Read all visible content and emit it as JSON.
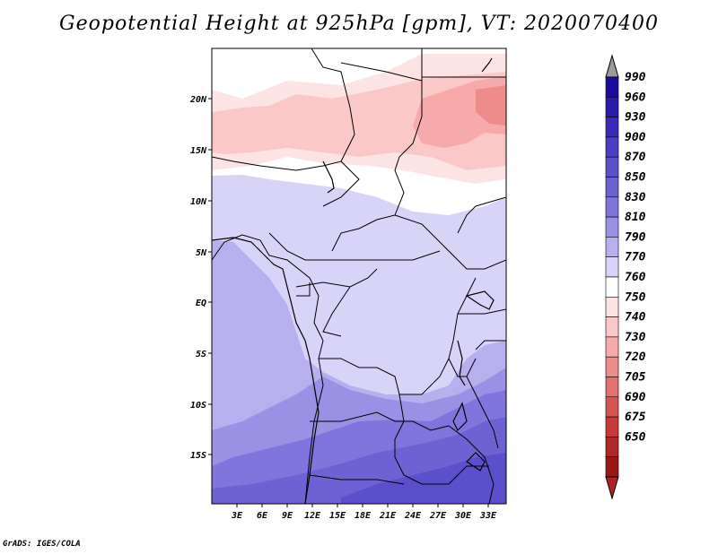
{
  "title": "Geopotential Height at 925hPa [gpm], VT: 2020070400",
  "credit": "GrADS: IGES/COLA",
  "map": {
    "lon_ticks": [
      "3E",
      "6E",
      "9E",
      "12E",
      "15E",
      "18E",
      "21E",
      "24E",
      "27E",
      "30E",
      "33E"
    ],
    "lat_ticks": [
      "20N",
      "15N",
      "10N",
      "5N",
      "EQ",
      "5S",
      "10S",
      "15S"
    ]
  },
  "colorbar": {
    "levels": [
      "990",
      "960",
      "930",
      "900",
      "870",
      "850",
      "830",
      "810",
      "790",
      "770",
      "760",
      "750",
      "740",
      "730",
      "720",
      "705",
      "690",
      "675",
      "650"
    ],
    "colors": [
      "#1c0a9a",
      "#2a1aaa",
      "#3a2cb8",
      "#4a3ec4",
      "#5a50cc",
      "#6c62d4",
      "#8075dc",
      "#9a90e4",
      "#b8b0ee",
      "#d8d4f8",
      "#ffffff",
      "#fde4e4",
      "#fbc8c8",
      "#f6aaaa",
      "#ee8c8c",
      "#e47070",
      "#d85454",
      "#c83a3a",
      "#b02828",
      "#981818"
    ],
    "arrow_top_color": "#9a9a9a",
    "arrow_bottom_color": "#b22222"
  }
}
